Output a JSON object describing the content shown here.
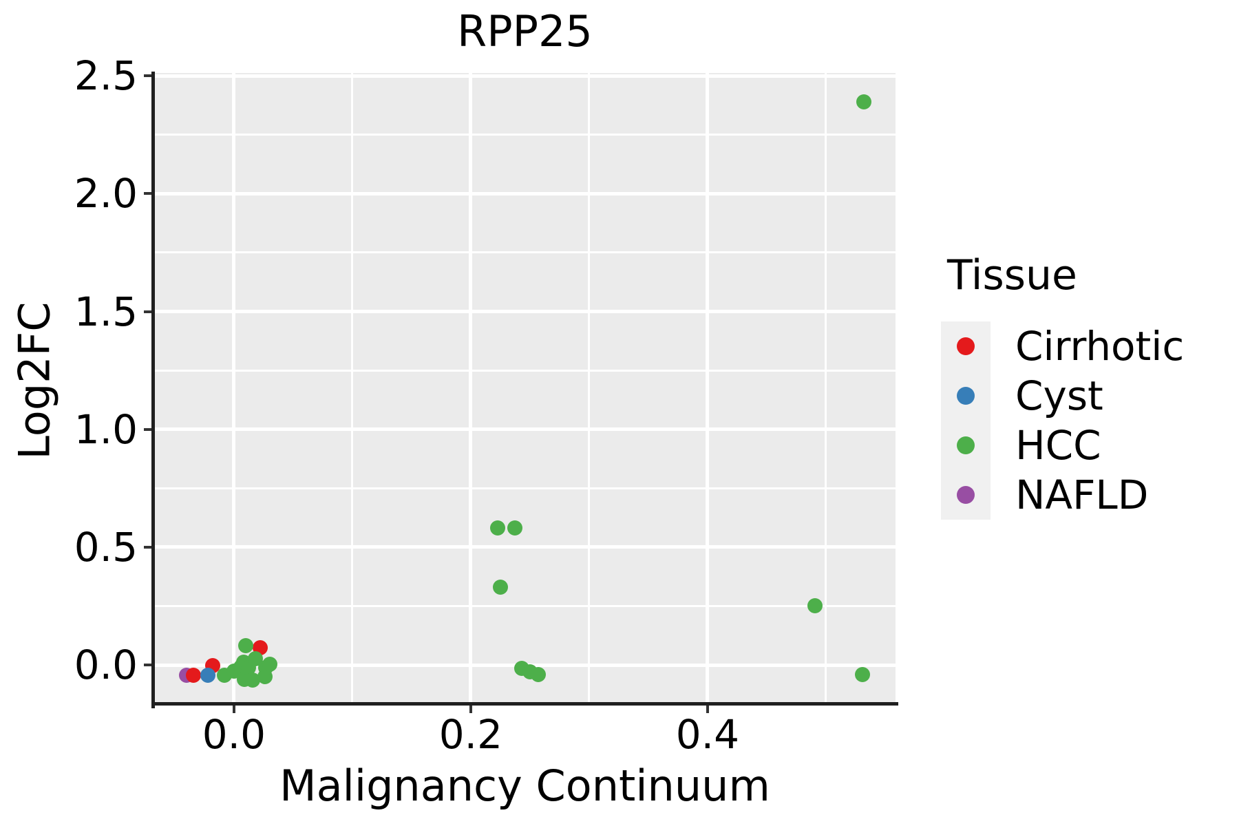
{
  "chart_data": {
    "type": "scatter",
    "title": "RPP25",
    "xlabel": "Malignancy Continuum",
    "ylabel": "Log2FC",
    "legend_title": "Tissue",
    "legend_position": "right",
    "grid": "white major and minor gridlines on gray panel",
    "panel_bg": "#EBEBEB",
    "legend_key_bg": "#F0F0F0",
    "xlim": [
      -0.0674,
      0.5588
    ],
    "ylim": [
      -0.169,
      2.512
    ],
    "x_ticks": [
      0.0,
      0.2,
      0.4
    ],
    "x_tick_labels": [
      "0.0",
      "0.2",
      "0.4"
    ],
    "y_ticks": [
      0.0,
      0.5,
      1.0,
      1.5,
      2.0,
      2.5
    ],
    "y_tick_labels": [
      "0.0",
      "0.5",
      "1.0",
      "1.5",
      "2.0",
      "2.5"
    ],
    "x_minor_ticks": [
      0.1,
      0.3,
      0.5
    ],
    "y_minor_ticks": [
      0.25,
      0.75,
      1.25,
      1.75,
      2.25
    ],
    "marker_radius_px": 11,
    "draw_order": [
      "NAFLD",
      "Cirrhotic",
      "Cyst",
      "HCC"
    ],
    "series": [
      {
        "name": "Cirrhotic",
        "color": "#E41A1C",
        "points": [
          [
            -0.034,
            -0.044
          ],
          [
            -0.018,
            -0.003
          ],
          [
            0.022,
            0.073
          ]
        ]
      },
      {
        "name": "Cyst",
        "color": "#377EB8",
        "points": [
          [
            -0.022,
            -0.044
          ]
        ]
      },
      {
        "name": "HCC",
        "color": "#4DAF4A",
        "points": [
          [
            -0.008,
            -0.044
          ],
          [
            0.0,
            -0.026
          ],
          [
            0.006,
            -0.009
          ],
          [
            0.008,
            0.012
          ],
          [
            0.009,
            -0.061
          ],
          [
            0.01,
            0.082
          ],
          [
            0.012,
            -0.012
          ],
          [
            0.016,
            -0.064
          ],
          [
            0.018,
            0.026
          ],
          [
            0.026,
            -0.05
          ],
          [
            0.027,
            -0.012
          ],
          [
            0.03,
            0.003
          ],
          [
            0.223,
            0.582
          ],
          [
            0.237,
            0.582
          ],
          [
            0.225,
            0.33
          ],
          [
            0.243,
            -0.015
          ],
          [
            0.25,
            -0.029
          ],
          [
            0.257,
            -0.041
          ],
          [
            0.491,
            0.251
          ],
          [
            0.531,
            -0.041
          ],
          [
            0.532,
            2.389
          ]
        ]
      },
      {
        "name": "NAFLD",
        "color": "#984EA3",
        "points": [
          [
            -0.04,
            -0.044
          ]
        ]
      }
    ]
  }
}
